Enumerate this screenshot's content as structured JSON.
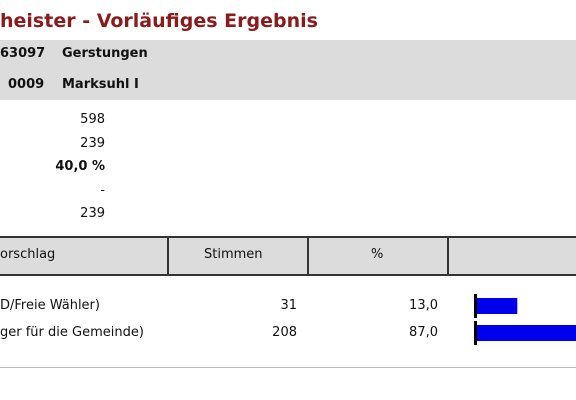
{
  "header": {
    "title": "heister - Vorläufiges Ergebnis",
    "region": {
      "code": "63097",
      "name": "Gerstungen"
    },
    "district": {
      "code": "0009",
      "name": "Marksuhl I"
    }
  },
  "summary": [
    598,
    239,
    "40,0 %",
    "-",
    239
  ],
  "table": {
    "columns": [
      "orschlag",
      "Stimmen",
      "%"
    ],
    "rows": [
      {
        "name": "D/Freie Wähler)",
        "votes": 31,
        "percent": {
          "value": 13.0,
          "label": "13,0"
        }
      },
      {
        "name": "ger für die Gemeinde)",
        "votes": 208,
        "percent": {
          "value": 87.0,
          "label": "87,0"
        }
      }
    ]
  }
}
